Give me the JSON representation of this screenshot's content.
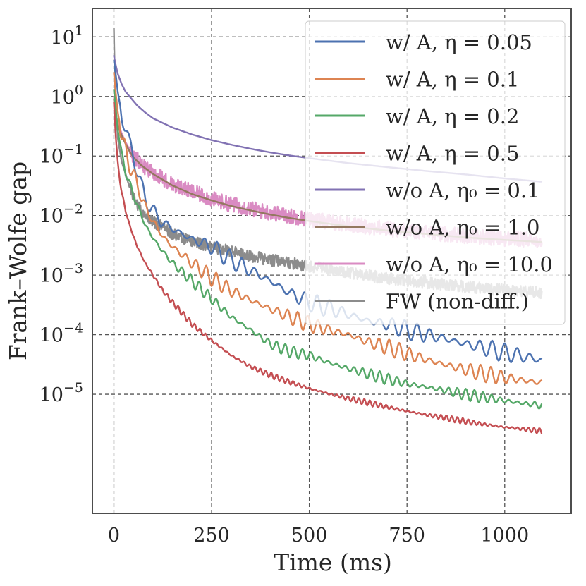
{
  "chart_data": {
    "type": "line",
    "xlabel": "Time (ms)",
    "ylabel": "Frank–Wolfe gap",
    "xscale": "linear",
    "yscale": "log",
    "xlim": [
      -55,
      1170
    ],
    "ylim": [
      1e-07,
      30
    ],
    "grid": true,
    "legend_position": "top-right",
    "x_ticks": [
      {
        "value": 0,
        "label": "0"
      },
      {
        "value": 250,
        "label": "250"
      },
      {
        "value": 500,
        "label": "500"
      },
      {
        "value": 750,
        "label": "750"
      },
      {
        "value": 1000,
        "label": "1000"
      }
    ],
    "y_ticks": [
      {
        "value": 10,
        "base": "10",
        "exp": "1"
      },
      {
        "value": 1,
        "base": "10",
        "exp": "0"
      },
      {
        "value": 0.1,
        "base": "10",
        "exp": "−1"
      },
      {
        "value": 0.01,
        "base": "10",
        "exp": "−2"
      },
      {
        "value": 0.001,
        "base": "10",
        "exp": "−3"
      },
      {
        "value": 0.0001,
        "base": "10",
        "exp": "−4"
      },
      {
        "value": 1e-05,
        "base": "10",
        "exp": "−5"
      }
    ],
    "series": [
      {
        "name": "w/ A, η = 0.05",
        "color": "#4c72b0",
        "x": [
          0,
          5,
          10,
          20,
          30,
          40,
          50,
          60,
          70,
          80,
          100,
          120,
          150,
          200,
          250,
          300,
          350,
          400,
          450,
          500,
          550,
          600,
          650,
          700,
          750,
          800,
          850,
          900,
          950,
          1000,
          1050,
          1095
        ],
        "y": [
          4,
          2.3,
          1.2,
          0.5,
          0.3,
          0.15,
          0.1,
          0.06,
          0.03,
          0.02,
          0.012,
          0.008,
          0.006,
          0.004,
          0.003,
          0.0018,
          0.0012,
          0.0008,
          0.0005,
          0.00035,
          0.00028,
          0.00022,
          0.00017,
          0.00015,
          0.00012,
          0.0001,
          8.5e-05,
          7e-05,
          6e-05,
          5e-05,
          4.3e-05,
          3.7e-05
        ],
        "wiggle": 0.16,
        "period": 32,
        "noise": 0
      },
      {
        "name": "w/ A, η = 0.1",
        "color": "#dd8452",
        "x": [
          0,
          5,
          10,
          20,
          30,
          40,
          50,
          60,
          80,
          100,
          125,
          150,
          200,
          250,
          300,
          350,
          400,
          450,
          500,
          550,
          600,
          650,
          700,
          750,
          800,
          850,
          900,
          950,
          1000,
          1050,
          1095
        ],
        "y": [
          2.5,
          1.1,
          0.55,
          0.22,
          0.12,
          0.07,
          0.05,
          0.032,
          0.014,
          0.008,
          0.0045,
          0.003,
          0.0016,
          0.0009,
          0.00055,
          0.00038,
          0.00027,
          0.0002,
          0.00015,
          0.00012,
          0.0001,
          7.5e-05,
          6.2e-05,
          4.8e-05,
          3.8e-05,
          3.1e-05,
          2.6e-05,
          2.2e-05,
          1.9e-05,
          1.7e-05,
          1.55e-05
        ],
        "wiggle": 0.14,
        "period": 26,
        "noise": 0
      },
      {
        "name": "w/ A, η = 0.2",
        "color": "#55a868",
        "x": [
          0,
          5,
          10,
          20,
          30,
          40,
          50,
          60,
          80,
          100,
          125,
          150,
          200,
          250,
          300,
          350,
          400,
          450,
          500,
          550,
          600,
          650,
          700,
          750,
          800,
          850,
          900,
          950,
          1000,
          1050,
          1095
        ],
        "y": [
          1.3,
          0.6,
          0.28,
          0.1,
          0.055,
          0.035,
          0.022,
          0.015,
          0.007,
          0.0042,
          0.0025,
          0.0016,
          0.0008,
          0.0004,
          0.0002,
          0.00012,
          7e-05,
          5.2e-05,
          4.5e-05,
          3.4e-05,
          2.7e-05,
          2.2e-05,
          1.8e-05,
          1.5e-05,
          1.32e-05,
          1.15e-05,
          9.9e-06,
          8.8e-06,
          7.8e-06,
          7e-06,
          6.5e-06
        ],
        "wiggle": 0.1,
        "period": 22,
        "noise": 0
      },
      {
        "name": "w/ A, η = 0.5",
        "color": "#c44e52",
        "x": [
          0,
          5,
          10,
          15,
          20,
          30,
          40,
          50,
          60,
          80,
          100,
          125,
          150,
          200,
          250,
          300,
          350,
          400,
          450,
          500,
          550,
          600,
          650,
          700,
          750,
          800,
          850,
          900,
          950,
          1000,
          1050,
          1095
        ],
        "y": [
          0.8,
          0.2,
          0.08,
          0.04,
          0.025,
          0.012,
          0.007,
          0.0045,
          0.003,
          0.0016,
          0.001,
          0.00055,
          0.00035,
          0.00015,
          8e-05,
          4.5e-05,
          2.9e-05,
          2.1e-05,
          1.6e-05,
          1.25e-05,
          1.02e-05,
          8.5e-06,
          7.2e-06,
          6.1e-06,
          5.2e-06,
          4.5e-06,
          4e-06,
          3.5e-06,
          3.1e-06,
          2.8e-06,
          2.6e-06,
          2.4e-06
        ],
        "wiggle": 0.05,
        "period": 14,
        "noise": 0
      },
      {
        "name": "w/o A, η₀ = 0.1",
        "color": "#8172b3",
        "x": [
          0,
          5,
          10,
          20,
          30,
          40,
          60,
          80,
          100,
          150,
          200,
          250,
          300,
          350,
          400,
          450,
          500,
          600,
          700,
          800,
          900,
          1000,
          1095
        ],
        "y": [
          4.8,
          3.3,
          2.4,
          1.6,
          1.2,
          1.0,
          0.7,
          0.54,
          0.43,
          0.3,
          0.23,
          0.185,
          0.155,
          0.132,
          0.115,
          0.102,
          0.092,
          0.076,
          0.065,
          0.056,
          0.049,
          0.042,
          0.037
        ],
        "wiggle": 0,
        "period": 1,
        "noise": 0
      },
      {
        "name": "w/o A, η₀ = 1.0",
        "color": "#937860",
        "x": [
          0,
          5,
          10,
          20,
          30,
          40,
          50,
          70,
          100,
          150,
          200,
          250,
          300,
          350,
          400,
          450,
          500,
          600,
          700,
          800,
          900,
          1000,
          1095
        ],
        "y": [
          0.9,
          0.45,
          0.33,
          0.22,
          0.16,
          0.12,
          0.095,
          0.07,
          0.05,
          0.032,
          0.023,
          0.018,
          0.0145,
          0.0122,
          0.0104,
          0.0091,
          0.0081,
          0.0066,
          0.0056,
          0.0049,
          0.0043,
          0.0039,
          0.0036
        ],
        "wiggle": 0,
        "period": 1,
        "noise": 0
      },
      {
        "name": "w/o A, η₀ = 10.0",
        "color": "#da8bc3",
        "x": [
          0,
          5,
          10,
          20,
          30,
          40,
          50,
          70,
          100,
          150,
          200,
          250,
          300,
          350,
          400,
          450,
          500,
          600,
          700,
          800,
          900,
          1000,
          1095
        ],
        "y": [
          1.0,
          0.5,
          0.35,
          0.24,
          0.17,
          0.13,
          0.1,
          0.073,
          0.053,
          0.034,
          0.025,
          0.019,
          0.0155,
          0.013,
          0.0112,
          0.0098,
          0.0087,
          0.0071,
          0.006,
          0.0052,
          0.0046,
          0.0041,
          0.0038
        ],
        "wiggle": 0,
        "period": 1,
        "noise": 0.13
      },
      {
        "name": "FW (non-diff.)",
        "color": "#8c8c8c",
        "x": [
          0,
          2,
          5,
          10,
          20,
          30,
          40,
          50,
          70,
          100,
          150,
          200,
          250,
          300,
          350,
          400,
          450,
          500,
          600,
          700,
          800,
          900,
          1000,
          1095
        ],
        "y": [
          14,
          3,
          0.6,
          0.2,
          0.08,
          0.05,
          0.03,
          0.02,
          0.012,
          0.008,
          0.005,
          0.0037,
          0.003,
          0.0025,
          0.0021,
          0.0018,
          0.0016,
          0.0014,
          0.0011,
          0.00088,
          0.00074,
          0.00064,
          0.00056,
          0.0005
        ],
        "wiggle": 0,
        "period": 1,
        "noise": 0.1
      }
    ]
  }
}
